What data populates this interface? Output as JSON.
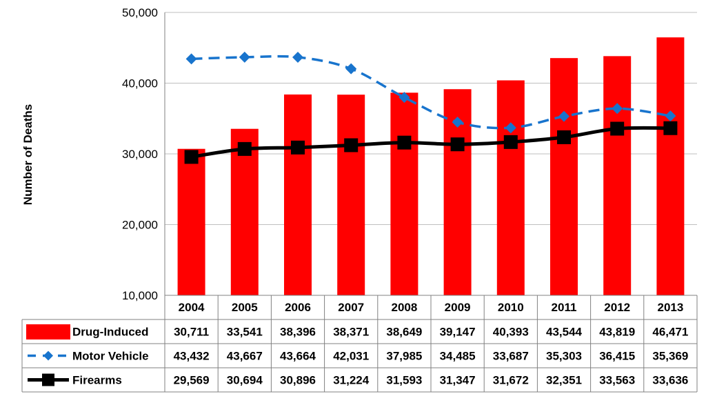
{
  "chart_data": {
    "type": "bar",
    "title": "",
    "xlabel": "",
    "ylabel": "Number of Deaths",
    "ylim": [
      10000,
      50000
    ],
    "yticks": [
      "10,000",
      "20,000",
      "30,000",
      "40,000",
      "50,000"
    ],
    "ytick_values": [
      10000,
      20000,
      30000,
      40000,
      50000
    ],
    "grid": true,
    "legend": "data-table",
    "categories": [
      "2004",
      "2005",
      "2006",
      "2007",
      "2008",
      "2009",
      "2010",
      "2011",
      "2012",
      "2013"
    ],
    "series": [
      {
        "name": "Drug-Induced",
        "type": "bar",
        "color": "#ff0000",
        "values": [
          30711,
          33541,
          38396,
          38371,
          38649,
          39147,
          40393,
          43544,
          43819,
          46471
        ],
        "labels": [
          "30,711",
          "33,541",
          "38,396",
          "38,371",
          "38,649",
          "39,147",
          "40,393",
          "43,544",
          "43,819",
          "46,471"
        ]
      },
      {
        "name": "Motor Vehicle",
        "type": "line",
        "style": "dashed",
        "marker": "diamond",
        "color": "#1874cd",
        "values": [
          43432,
          43667,
          43664,
          42031,
          37985,
          34485,
          33687,
          35303,
          36415,
          35369
        ],
        "labels": [
          "43,432",
          "43,667",
          "43,664",
          "42,031",
          "37,985",
          "34,485",
          "33,687",
          "35,303",
          "36,415",
          "35,369"
        ]
      },
      {
        "name": "Firearms",
        "type": "line",
        "style": "solid",
        "marker": "square",
        "color": "#000000",
        "values": [
          29569,
          30694,
          30896,
          31224,
          31593,
          31347,
          31672,
          32351,
          33563,
          33636
        ],
        "labels": [
          "29,569",
          "30,694",
          "30,896",
          "31,224",
          "31,593",
          "31,347",
          "31,672",
          "32,351",
          "33,563",
          "33,636"
        ]
      }
    ]
  }
}
